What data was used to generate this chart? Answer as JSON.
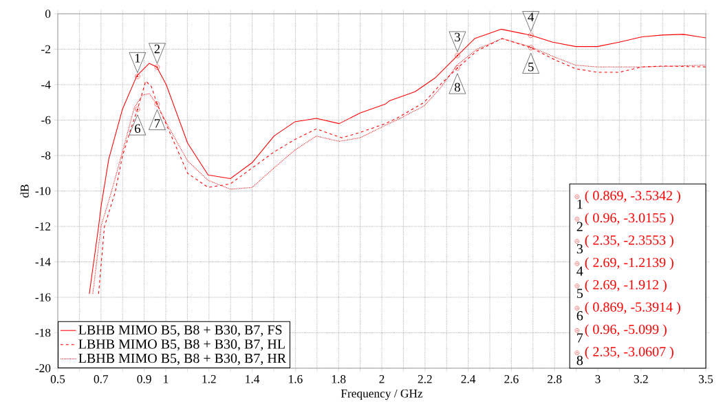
{
  "chart_data": {
    "type": "line",
    "xlabel": "Frequency / GHz",
    "ylabel": "dB",
    "xlim": [
      0.5,
      3.5
    ],
    "ylim": [
      -20,
      0
    ],
    "xticks": [
      0.5,
      {
        "value": 0.6,
        "label": null
      },
      0.7,
      {
        "value": 0.8,
        "label": null
      },
      0.9,
      1,
      {
        "value": 1.1,
        "label": null
      },
      1.2,
      {
        "value": 1.3,
        "label": null
      },
      1.4,
      {
        "value": 1.5,
        "label": null
      },
      1.6,
      {
        "value": 1.7,
        "label": null
      },
      1.8,
      {
        "value": 1.9,
        "label": null
      },
      2,
      {
        "value": 2.1,
        "label": null
      },
      2.2,
      {
        "value": 2.3,
        "label": null
      },
      2.4,
      {
        "value": 2.5,
        "label": null
      },
      2.6,
      {
        "value": 2.7,
        "label": null
      },
      2.8,
      {
        "value": 2.9,
        "label": null
      },
      3,
      {
        "value": 3.1,
        "label": null
      },
      3.2,
      {
        "value": 3.3,
        "label": null
      },
      {
        "value": 3.4,
        "label": null
      },
      3.5
    ],
    "yticks": [
      0,
      -2,
      -4,
      -6,
      -8,
      -10,
      -12,
      -14,
      -16,
      -18,
      -20
    ],
    "grid": true,
    "legend": "bottom left",
    "marker": "none",
    "series": [
      {
        "name": "LBHB MIMO B5, B8 + B30, B7, FS",
        "color": "#ff0000",
        "line_style": "solid",
        "x": [
          0.646,
          0.689,
          0.7,
          0.736,
          0.799,
          0.866,
          0.923,
          0.958,
          1.002,
          1.101,
          1.196,
          1.299,
          1.4,
          1.501,
          1.597,
          1.697,
          1.803,
          1.899,
          2.016,
          2.037,
          2.154,
          2.249,
          2.35,
          2.43,
          2.552,
          2.69,
          2.791,
          2.897,
          2.998,
          3.099,
          3.205,
          3.3,
          3.396,
          3.5
        ],
        "values": [
          -15.8,
          -12,
          -10.9,
          -8.2,
          -5.4,
          -3.5,
          -2.8,
          -3.0,
          -4.0,
          -7.3,
          -9.1,
          -9.3,
          -8.4,
          -6.9,
          -6.1,
          -5.9,
          -6.2,
          -5.6,
          -5.1,
          -4.9,
          -4.4,
          -3.6,
          -2.36,
          -1.4,
          -0.87,
          -1.21,
          -1.6,
          -1.85,
          -1.85,
          -1.6,
          -1.3,
          -1.2,
          -1.16,
          -1.36
        ]
      },
      {
        "name": "LBHB MIMO B5, B8 + B30, B7, HL",
        "color": "#ff0000",
        "line_style": "dashed",
        "x": [
          0.689,
          0.716,
          0.765,
          0.8,
          0.838,
          0.869,
          0.907,
          0.933,
          0.96,
          0.997,
          1.101,
          1.196,
          1.299,
          1.4,
          1.501,
          1.597,
          1.697,
          1.814,
          1.899,
          2.016,
          2.069,
          2.196,
          2.271,
          2.35,
          2.44,
          2.557,
          2.69,
          2.801,
          2.897,
          2.998,
          3.099,
          3.205,
          3.3,
          3.5
        ],
        "values": [
          -15.8,
          -12,
          -10.1,
          -8.0,
          -6.5,
          -5.39,
          -3.8,
          -4.1,
          -5.1,
          -6.1,
          -9.0,
          -9.8,
          -9.6,
          -8.7,
          -7.8,
          -7.1,
          -6.5,
          -7.0,
          -6.7,
          -6.2,
          -5.9,
          -5.0,
          -4.0,
          -3.06,
          -2.1,
          -1.4,
          -1.91,
          -2.6,
          -3.1,
          -3.3,
          -3.3,
          -3.0,
          -2.95,
          -3.0
        ]
      },
      {
        "name": "LBHB MIMO B5, B8 + B30, B7, HR",
        "color": "#ff0000",
        "line_style": "dotted",
        "x": [
          0.662,
          0.7,
          0.747,
          0.806,
          0.854,
          0.891,
          0.923,
          0.958,
          1.018,
          1.101,
          1.196,
          1.299,
          1.4,
          1.501,
          1.597,
          1.697,
          1.803,
          1.899,
          2.016,
          2.069,
          2.196,
          2.271,
          2.348,
          2.44,
          2.557,
          2.69,
          2.801,
          2.897,
          2.998,
          3.205,
          3.5
        ],
        "values": [
          -15.8,
          -12,
          -10.1,
          -7.5,
          -5.3,
          -4.6,
          -4.5,
          -5.1,
          -6.5,
          -8.3,
          -9.4,
          -9.9,
          -9.8,
          -8.7,
          -7.7,
          -6.9,
          -7.2,
          -7.0,
          -6.3,
          -6.0,
          -5.2,
          -4.2,
          -2.9,
          -2.0,
          -1.4,
          -1.87,
          -2.45,
          -2.9,
          -3.0,
          -3.0,
          -2.9
        ]
      }
    ],
    "annotations": [
      {
        "text": "1",
        "x": 0.869,
        "y": -3.5342
      },
      {
        "text": "2",
        "x": 0.96,
        "y": -3.0155
      },
      {
        "text": "3",
        "x": 2.35,
        "y": -2.3553
      },
      {
        "text": "4",
        "x": 2.69,
        "y": -1.2139
      },
      {
        "text": "5",
        "x": 2.69,
        "y": -1.912
      },
      {
        "text": "6",
        "x": 0.869,
        "y": -5.3914
      },
      {
        "text": "7",
        "x": 0.96,
        "y": -5.099
      },
      {
        "text": "8",
        "x": 2.35,
        "y": -3.0607
      },
      "( 0.869, -3.5342 )",
      "( 0.96, -3.0155 )",
      "( 2.35, -2.3553 )",
      "( 2.69, -1.2139 )",
      "( 2.69, -1.912 )",
      "( 0.869, -5.3914 )",
      "( 0.96, -5.099 )",
      "( 2.35, -3.0607 )"
    ]
  }
}
